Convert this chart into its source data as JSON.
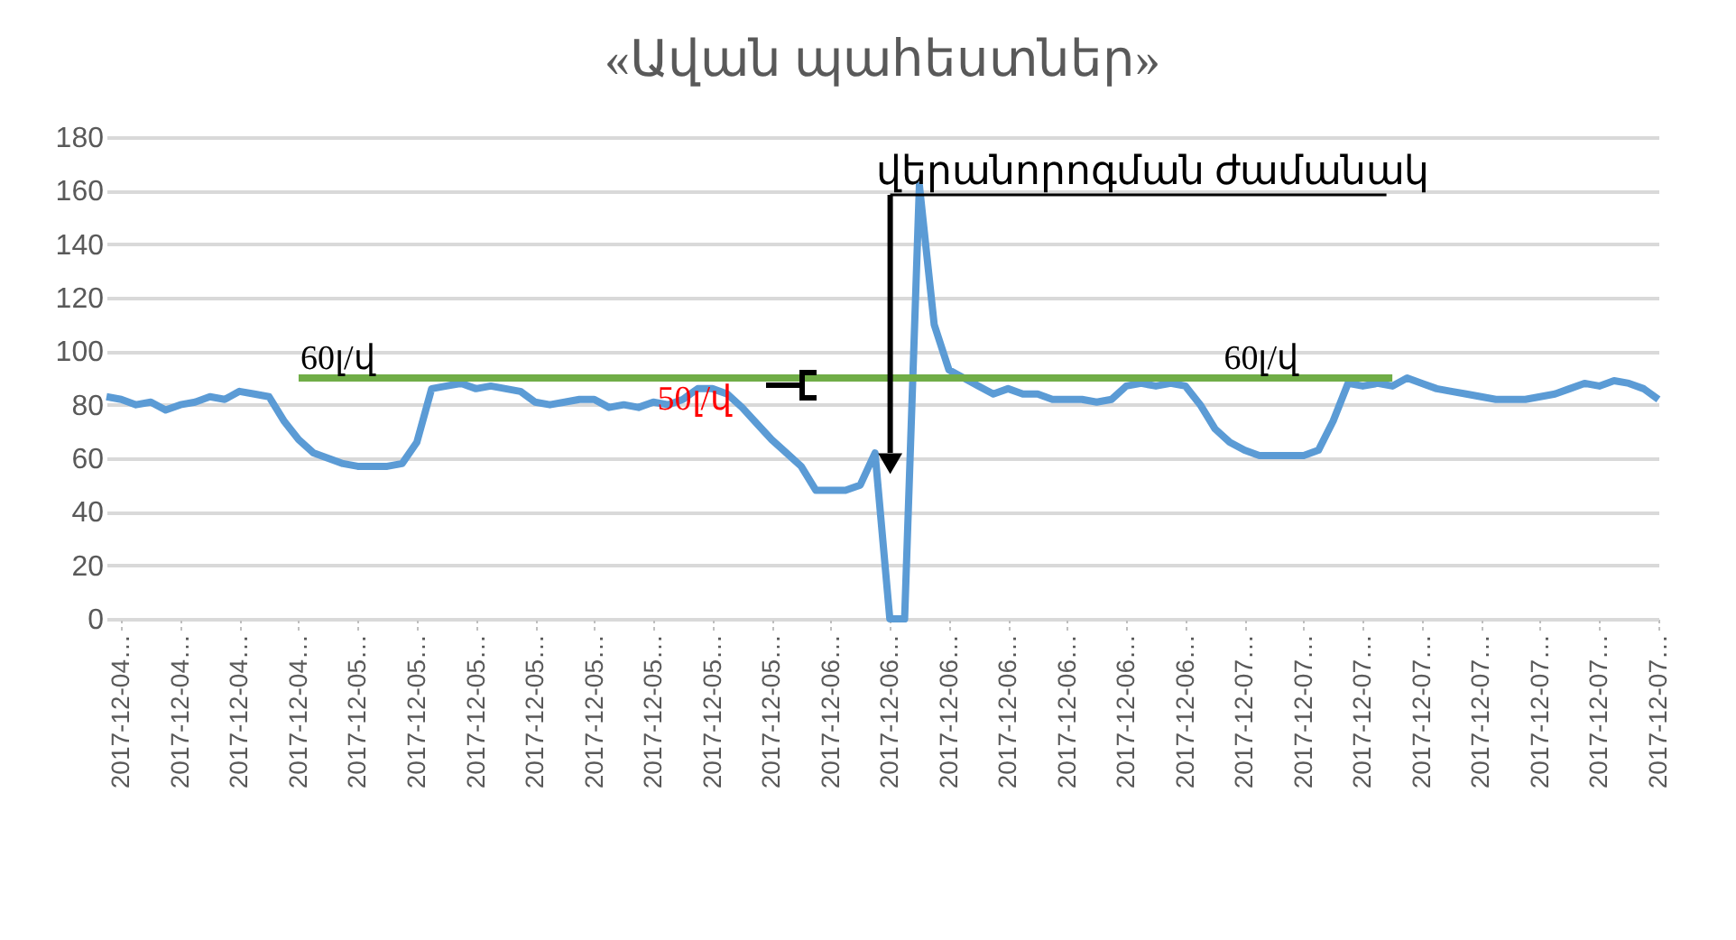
{
  "chart_data": {
    "type": "line",
    "title": "«Ավան պահեստներ»",
    "categories": [
      null,
      "2017-12-04…",
      null,
      null,
      null,
      "2017-12-04…",
      null,
      null,
      null,
      "2017-12-04…",
      null,
      null,
      null,
      "2017-12-04…",
      null,
      null,
      null,
      "2017-12-05…",
      null,
      null,
      null,
      "2017-12-05…",
      null,
      null,
      null,
      "2017-12-05…",
      null,
      null,
      null,
      "2017-12-05…",
      null,
      null,
      null,
      "2017-12-05…",
      null,
      null,
      null,
      "2017-12-05…",
      null,
      null,
      null,
      "2017-12-05…",
      null,
      null,
      null,
      "2017-12-05…",
      null,
      null,
      null,
      "2017-12-06…",
      null,
      null,
      null,
      "2017-12-06…",
      null,
      null,
      null,
      "2017-12-06…",
      null,
      null,
      null,
      "2017-12-06…",
      null,
      null,
      null,
      "2017-12-06…",
      null,
      null,
      null,
      "2017-12-06…",
      null,
      null,
      null,
      "2017-12-06…",
      null,
      null,
      null,
      "2017-12-07…",
      null,
      null,
      null,
      "2017-12-07…",
      null,
      null,
      null,
      "2017-12-07…",
      null,
      null,
      null,
      "2017-12-07…",
      null,
      null,
      null,
      "2017-12-07…",
      null,
      null,
      null,
      "2017-12-07…",
      null,
      null,
      null,
      "2017-12-07…",
      null,
      null,
      null,
      "2017-12-07…"
    ],
    "series": [
      {
        "color": "#5b9bd5",
        "values": [
          83,
          82,
          80,
          81,
          78,
          80,
          81,
          83,
          82,
          85,
          84,
          83,
          74,
          67,
          62,
          60,
          58,
          57,
          57,
          57,
          58,
          66,
          86,
          87,
          88,
          86,
          87,
          86,
          85,
          81,
          80,
          81,
          82,
          82,
          79,
          80,
          79,
          81,
          80,
          82,
          86,
          86,
          84,
          79,
          73,
          67,
          62,
          57,
          48,
          48,
          48,
          50,
          62,
          0,
          0,
          162,
          110,
          93,
          90,
          87,
          84,
          86,
          84,
          84,
          82,
          82,
          82,
          81,
          82,
          87,
          88,
          87,
          88,
          87,
          80,
          71,
          66,
          63,
          61,
          61,
          61,
          61,
          63,
          74,
          88,
          87,
          88,
          87,
          90,
          88,
          86,
          85,
          84,
          83,
          82,
          82,
          82,
          83,
          84,
          86,
          88,
          87,
          89,
          88,
          86,
          82
        ]
      },
      {
        "color": "#70ad47",
        "values": [
          null,
          null,
          null,
          null,
          null,
          null,
          null,
          null,
          null,
          null,
          null,
          null,
          null,
          90,
          90,
          90,
          90,
          90,
          90,
          90,
          90,
          90,
          90,
          90,
          90,
          90,
          90,
          90,
          90,
          90,
          90,
          90,
          90,
          90,
          90,
          90,
          90,
          90,
          90,
          90,
          90,
          90,
          90,
          90,
          90,
          90,
          90,
          90,
          90,
          90,
          90,
          90,
          90,
          90,
          90,
          90,
          90,
          90,
          90,
          90,
          90,
          90,
          90,
          90,
          90,
          90,
          90,
          90,
          90,
          90,
          90,
          90,
          90,
          90,
          90,
          90,
          90,
          90,
          90,
          90,
          90,
          90,
          90,
          90,
          90,
          90,
          90,
          90,
          null,
          null,
          null,
          null,
          null,
          null,
          null,
          null,
          null,
          null,
          null,
          null,
          null,
          null,
          null,
          null,
          null,
          null
        ]
      }
    ],
    "ylim": [
      0,
      180
    ],
    "yticks": [
      0,
      20,
      40,
      60,
      80,
      100,
      120,
      140,
      160,
      180
    ],
    "grid": "y",
    "marker": "none",
    "line_style": "solid",
    "annotations": [
      {
        "text": "60լ/վ",
        "y": 90
      },
      {
        "text": "50լ/վ",
        "y": 85
      },
      {
        "text": "60լ/վ",
        "y": 90
      },
      "վերանորոգման ժամանակ"
    ]
  }
}
